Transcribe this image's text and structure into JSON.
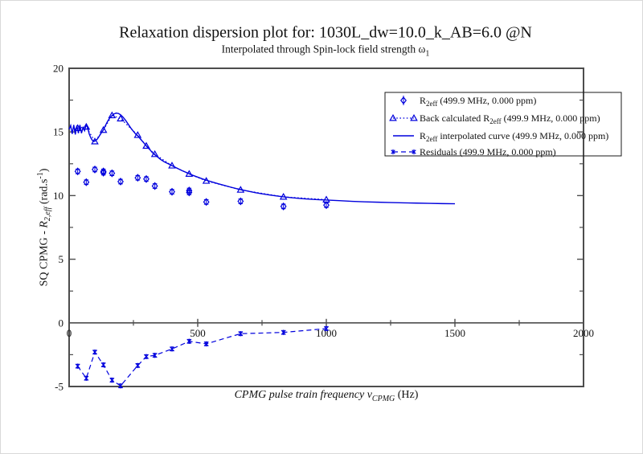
{
  "title": "Relaxation dispersion plot for: 1030L_dw=10.0_k_AB=6.0 @N",
  "subtitle": {
    "pre": "Interpolated through Spin-lock field strength ω",
    "sub": "1"
  },
  "x_axis": {
    "label_italic": "CPMG pulse train frequency ν",
    "label_sub": "CPMG",
    "label_post": " (Hz)",
    "ticks": [
      0,
      500,
      1000,
      1500,
      2000
    ],
    "minor_ticks": [
      250,
      750,
      1250,
      1750
    ],
    "range": [
      0,
      2000
    ]
  },
  "y_axis": {
    "label_pre": "SQ CPMG - ",
    "label_R": "R",
    "label_sub": "2,eff",
    "label_mid": " (rad.s",
    "label_sup": "-1",
    "label_post": ")",
    "ticks": [
      20,
      15,
      10,
      5,
      0,
      -5
    ],
    "minor_ticks": [
      17.5,
      12.5,
      7.5,
      2.5,
      -2.5
    ],
    "range": [
      -5,
      20
    ]
  },
  "legend": {
    "entries": [
      {
        "marker": "diamond-err",
        "pre": "R",
        "sub": "2eff",
        "post": " (499.9 MHz, 0.000 ppm)"
      },
      {
        "marker": "triangle-dotted",
        "pre": "Back calculated R",
        "sub": "2eff",
        "post": " (499.9 MHz, 0.000 ppm)"
      },
      {
        "marker": "solid-line",
        "pre": "R",
        "sub": "2eff",
        "post": " interpolated curve (499.9 MHz, 0.000 ppm)"
      },
      {
        "marker": "star-dashed",
        "pre": "Residuals (499.9 MHz, 0.000 ppm)",
        "sub": "",
        "post": ""
      }
    ]
  },
  "colors": {
    "series_blue": "#0000dd",
    "frame_gray": "#4d4d4d",
    "text_black": "#111111",
    "legend_border": "#1a1a1a"
  },
  "chart_data": {
    "type": "line",
    "title": "Relaxation dispersion plot for: 1030L_dw=10.0_k_AB=6.0 @N",
    "subtitle": "Interpolated through Spin-lock field strength ω1",
    "xlabel": "CPMG pulse train frequency νCPMG (Hz)",
    "ylabel": "SQ CPMG - R2,eff (rad.s-1)",
    "xlim": [
      0,
      2000
    ],
    "ylim": [
      -5,
      20
    ],
    "grid": false,
    "legend_position": "top-right",
    "series": [
      {
        "name": "R2eff (499.9 MHz, 0.000 ppm)",
        "kind": "scatter",
        "marker": "diamond",
        "linestyle": "none",
        "yerr": 0.18,
        "x": [
          33.3,
          66.7,
          100,
          133.3,
          133.3,
          166.7,
          200,
          266.7,
          300,
          333.3,
          400,
          466.7,
          466.7,
          533.3,
          666.7,
          833.3,
          1000
        ],
        "y": [
          11.9,
          11.05,
          12.05,
          11.9,
          11.8,
          11.75,
          11.1,
          11.4,
          11.3,
          10.75,
          10.3,
          10.25,
          10.4,
          9.5,
          9.55,
          9.15,
          9.25
        ]
      },
      {
        "name": "Back calculated R2eff (499.9 MHz, 0.000 ppm)",
        "kind": "line+scatter",
        "marker": "triangle",
        "linestyle": "dotted",
        "x": [
          33.3,
          66.7,
          100,
          133.3,
          166.7,
          200,
          266.7,
          300,
          333.3,
          400,
          466.7,
          533.3,
          666.7,
          833.3,
          1000
        ],
        "y": [
          15.3,
          15.4,
          14.25,
          15.15,
          16.3,
          16.05,
          14.75,
          13.9,
          13.25,
          12.35,
          11.7,
          11.15,
          10.45,
          9.9,
          9.68
        ]
      },
      {
        "name": "R2eff interpolated curve (499.9 MHz, 0.000 ppm)",
        "kind": "line",
        "marker": "none",
        "linestyle": "solid",
        "x": [
          0,
          6,
          12,
          18,
          24,
          30,
          36,
          42,
          48,
          54,
          60,
          66,
          72,
          78,
          84,
          90,
          96,
          102,
          110,
          118,
          126,
          133,
          141,
          150,
          158,
          167,
          175,
          183,
          192,
          200,
          210,
          220,
          230,
          240,
          250,
          260,
          267,
          277,
          288,
          300,
          312,
          325,
          340,
          355,
          370,
          385,
          400,
          420,
          440,
          460,
          480,
          500,
          520,
          540,
          560,
          580,
          600,
          625,
          650,
          675,
          700,
          725,
          750,
          775,
          800,
          833,
          866,
          900,
          933,
          966,
          1000,
          1050,
          1100,
          1150,
          1200,
          1250,
          1300,
          1350,
          1400,
          1450,
          1500
        ],
        "y": [
          15.2,
          15.5,
          14.85,
          15.55,
          14.8,
          15.5,
          14.9,
          15.55,
          14.9,
          15.35,
          15.1,
          15.55,
          15.35,
          14.85,
          14.55,
          14.35,
          14.25,
          14.3,
          14.45,
          14.7,
          14.95,
          15.15,
          15.5,
          15.85,
          16.1,
          16.3,
          16.42,
          16.48,
          16.45,
          16.35,
          16.15,
          15.9,
          15.6,
          15.3,
          15.05,
          14.8,
          14.7,
          14.45,
          14.2,
          13.9,
          13.65,
          13.35,
          13.1,
          12.85,
          12.65,
          12.5,
          12.35,
          12.15,
          11.95,
          11.78,
          11.6,
          11.45,
          11.3,
          11.17,
          11.05,
          10.93,
          10.82,
          10.68,
          10.55,
          10.44,
          10.33,
          10.23,
          10.14,
          10.06,
          9.99,
          9.9,
          9.83,
          9.77,
          9.72,
          9.68,
          9.65,
          9.6,
          9.55,
          9.51,
          9.48,
          9.45,
          9.43,
          9.41,
          9.39,
          9.37,
          9.36
        ]
      },
      {
        "name": "Residuals (499.9 MHz, 0.000 ppm)",
        "kind": "line+scatter",
        "marker": "star",
        "linestyle": "dashed",
        "yerr": 0.15,
        "x": [
          33.3,
          66.7,
          100,
          133.3,
          166.7,
          200,
          266.7,
          300,
          333.3,
          400,
          466.7,
          533.3,
          666.7,
          833.3,
          1000
        ],
        "y": [
          -3.4,
          -4.35,
          -2.3,
          -3.3,
          -4.5,
          -4.95,
          -3.35,
          -2.65,
          -2.55,
          -2.05,
          -1.45,
          -1.65,
          -0.85,
          -0.75,
          -0.45
        ]
      }
    ]
  }
}
